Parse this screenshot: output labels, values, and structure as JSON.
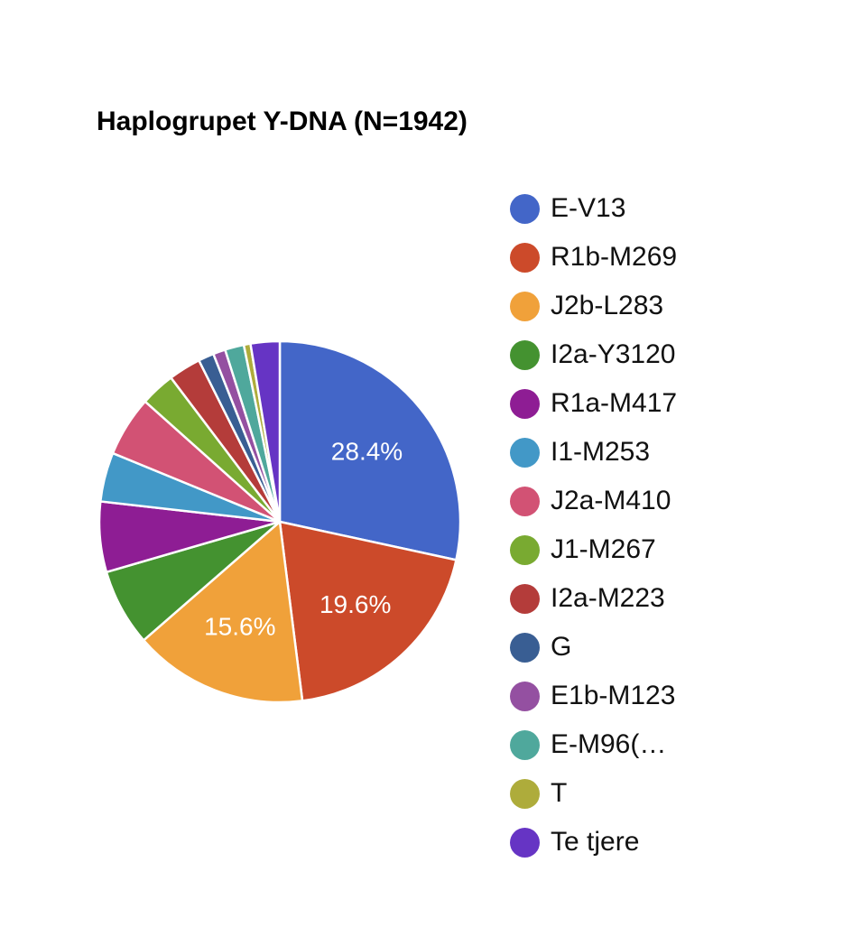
{
  "chart_data": {
    "type": "pie",
    "title": "Haplogrupet Y-DNA (N=1942)",
    "slices": [
      {
        "label": "E-V13",
        "value": 28.4,
        "color": "#4366c8",
        "value_label": "28.4%"
      },
      {
        "label": "R1b-M269",
        "value": 19.6,
        "color": "#cc4a2a",
        "value_label": "19.6%"
      },
      {
        "label": "J2b-L283",
        "value": 15.6,
        "color": "#f0a13a",
        "value_label": "15.6%"
      },
      {
        "label": "I2a-Y3120",
        "value": 6.9,
        "color": "#449230",
        "value_label": ""
      },
      {
        "label": "R1a-M417",
        "value": 6.3,
        "color": "#8e1d94",
        "value_label": ""
      },
      {
        "label": "I1-M253",
        "value": 4.4,
        "color": "#4298c7",
        "value_label": ""
      },
      {
        "label": "J2a-M410",
        "value": 5.4,
        "color": "#d25274",
        "value_label": ""
      },
      {
        "label": "J1-M267",
        "value": 3.1,
        "color": "#79aa31",
        "value_label": ""
      },
      {
        "label": "I2a-M223",
        "value": 2.9,
        "color": "#b43c3a",
        "value_label": ""
      },
      {
        "label": "G",
        "value": 1.4,
        "color": "#395e93",
        "value_label": ""
      },
      {
        "label": "E1b-M123",
        "value": 1.1,
        "color": "#9450a1",
        "value_label": ""
      },
      {
        "label": "E-M96(…",
        "value": 1.7,
        "color": "#4fa89c",
        "value_label": ""
      },
      {
        "label": "T",
        "value": 0.6,
        "color": "#aeac3b",
        "value_label": ""
      },
      {
        "label": "Te tjere",
        "value": 2.6,
        "color": "#6634c4",
        "value_label": ""
      }
    ],
    "legend_position": "right"
  }
}
